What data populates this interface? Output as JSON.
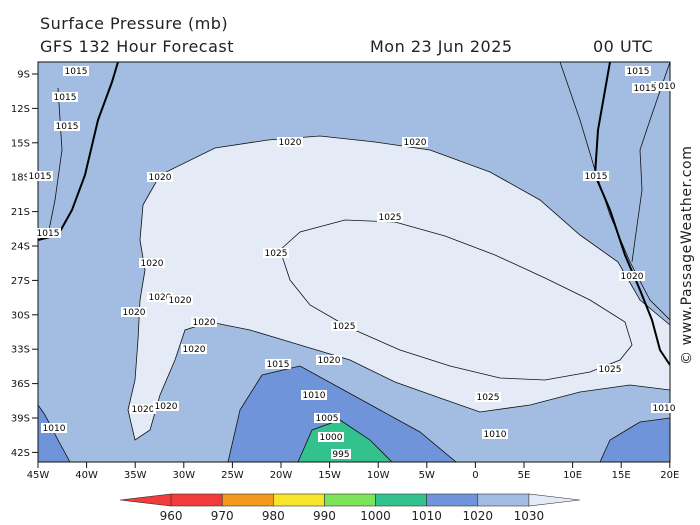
{
  "header": {
    "title": "Surface Pressure (mb)",
    "forecast": "GFS 132 Hour Forecast",
    "date": "Mon 23 Jun 2025",
    "time": "00 UTC"
  },
  "lat_ticks": [
    "9S",
    "12S",
    "15S",
    "18S",
    "21S",
    "24S",
    "27S",
    "30S",
    "33S",
    "36S",
    "39S",
    "42S"
  ],
  "lon_ticks": [
    "45W",
    "40W",
    "35W",
    "30W",
    "25W",
    "20W",
    "15W",
    "10W",
    "5W",
    "0",
    "5E",
    "10E",
    "15E",
    "20E"
  ],
  "legend": {
    "labels": [
      "960",
      "970",
      "980",
      "990",
      "1000",
      "1010",
      "1020",
      "1030"
    ],
    "colors": [
      "#f03c3c",
      "#f29a1d",
      "#f7e52a",
      "#7ce35a",
      "#33c28e",
      "#6f94d9",
      "#a3bde2",
      "#e4ebf7"
    ]
  },
  "isobar_labels": [
    "1015",
    "1015",
    "1015",
    "1020",
    "1020",
    "1015",
    "1020",
    "1015",
    "1025",
    "1025",
    "1020",
    "1020",
    "1020",
    "1020",
    "1020",
    "1020",
    "1020",
    "1025",
    "1015",
    "1020",
    "1015",
    "1025",
    "1010",
    "1005",
    "1000",
    "995",
    "1020",
    "1020",
    "1025",
    "1010",
    "1010",
    "1010",
    "1015",
    "1010",
    "1015"
  ],
  "credit": "© www.PassageWeather.com"
}
